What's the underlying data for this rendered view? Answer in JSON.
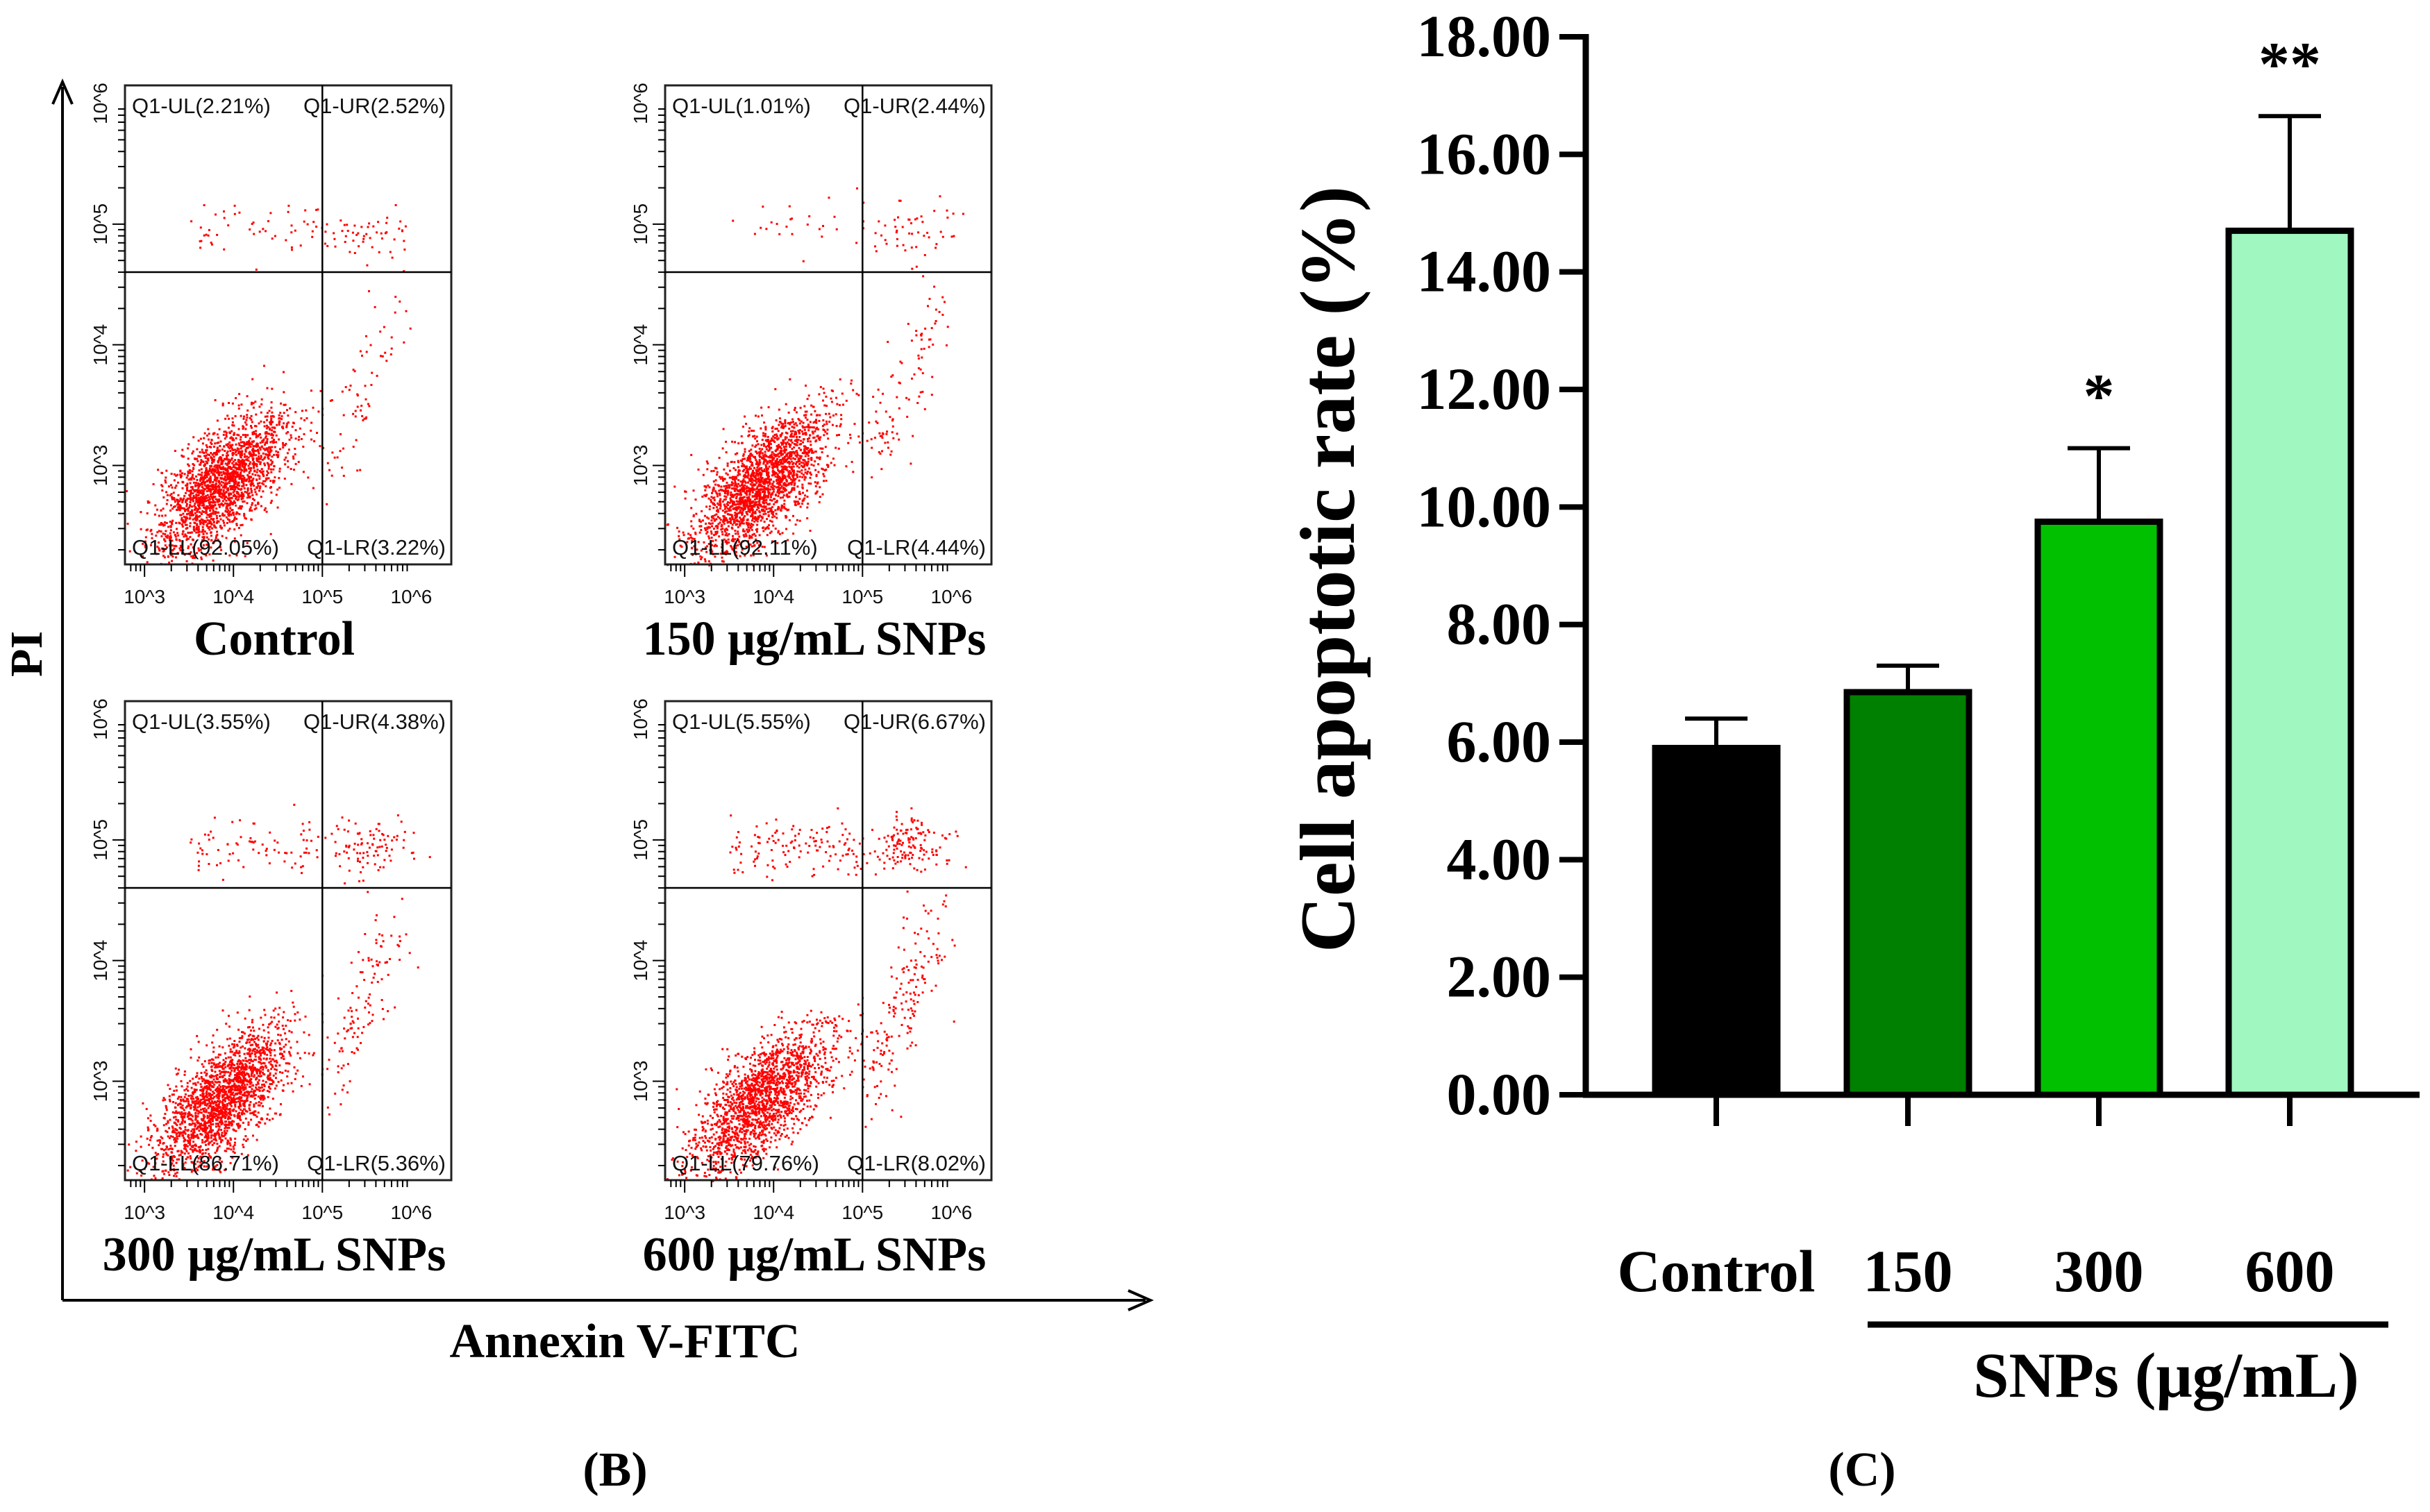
{
  "chart_data": [
    {
      "type": "scatter",
      "panel_label": "(B)",
      "xlabel": "Annexin V-FITC",
      "ylabel": "PI",
      "x_scale": "log",
      "y_scale": "log",
      "x_ticks": [
        "10^3",
        "10^4",
        "10^5",
        "10^6"
      ],
      "y_ticks": [
        "10^3",
        "10^4",
        "10^5",
        "10^6"
      ],
      "quadrant_gate": {
        "x": 100000,
        "y": 40000
      },
      "panels": [
        {
          "title": "Control",
          "quadrants": {
            "UL": "Q1-UL(2.21%)",
            "UR": "Q1-UR(2.52%)",
            "LL": "Q1-LL(92.05%)",
            "LR": "Q1-LR(3.22%)"
          },
          "values": {
            "UL": 2.21,
            "UR": 2.52,
            "LL": 92.05,
            "LR": 3.22
          }
        },
        {
          "title": "150 μg/mL SNPs",
          "quadrants": {
            "UL": "Q1-UL(1.01%)",
            "UR": "Q1-UR(2.44%)",
            "LL": "Q1-LL(92.11%)",
            "LR": "Q1-LR(4.44%)"
          },
          "values": {
            "UL": 1.01,
            "UR": 2.44,
            "LL": 92.11,
            "LR": 4.44
          }
        },
        {
          "title": "300 μg/mL SNPs",
          "quadrants": {
            "UL": "Q1-UL(3.55%)",
            "UR": "Q1-UR(4.38%)",
            "LL": "Q1-LL(86.71%)",
            "LR": "Q1-LR(5.36%)"
          },
          "values": {
            "UL": 3.55,
            "UR": 4.38,
            "LL": 86.71,
            "LR": 5.36
          }
        },
        {
          "title": "600 μg/mL SNPs",
          "quadrants": {
            "UL": "Q1-UL(5.55%)",
            "UR": "Q1-UR(6.67%)",
            "LL": "Q1-LL(79.76%)",
            "LR": "Q1-LR(8.02%)"
          },
          "values": {
            "UL": 5.55,
            "UR": 6.67,
            "LL": 79.76,
            "LR": 8.02
          }
        }
      ],
      "point_color": "#ff0000"
    },
    {
      "type": "bar",
      "panel_label": "(C)",
      "categories": [
        "Control",
        "150",
        "300",
        "600"
      ],
      "values": [
        5.9,
        6.85,
        9.75,
        14.7
      ],
      "errors": [
        0.5,
        0.45,
        1.25,
        1.95
      ],
      "significance": [
        "",
        "",
        "*",
        "**"
      ],
      "colors": [
        "#000000",
        "#008000",
        "#00c000",
        "#a0f8c0"
      ],
      "ylabel": "Cell apoptotic rate (%)",
      "xlabel": "SNPs (μg/mL)",
      "ylim": [
        0,
        18
      ],
      "yticks": [
        "0.00",
        "2.00",
        "4.00",
        "6.00",
        "8.00",
        "10.00",
        "12.00",
        "14.00",
        "16.00",
        "18.00"
      ]
    }
  ]
}
